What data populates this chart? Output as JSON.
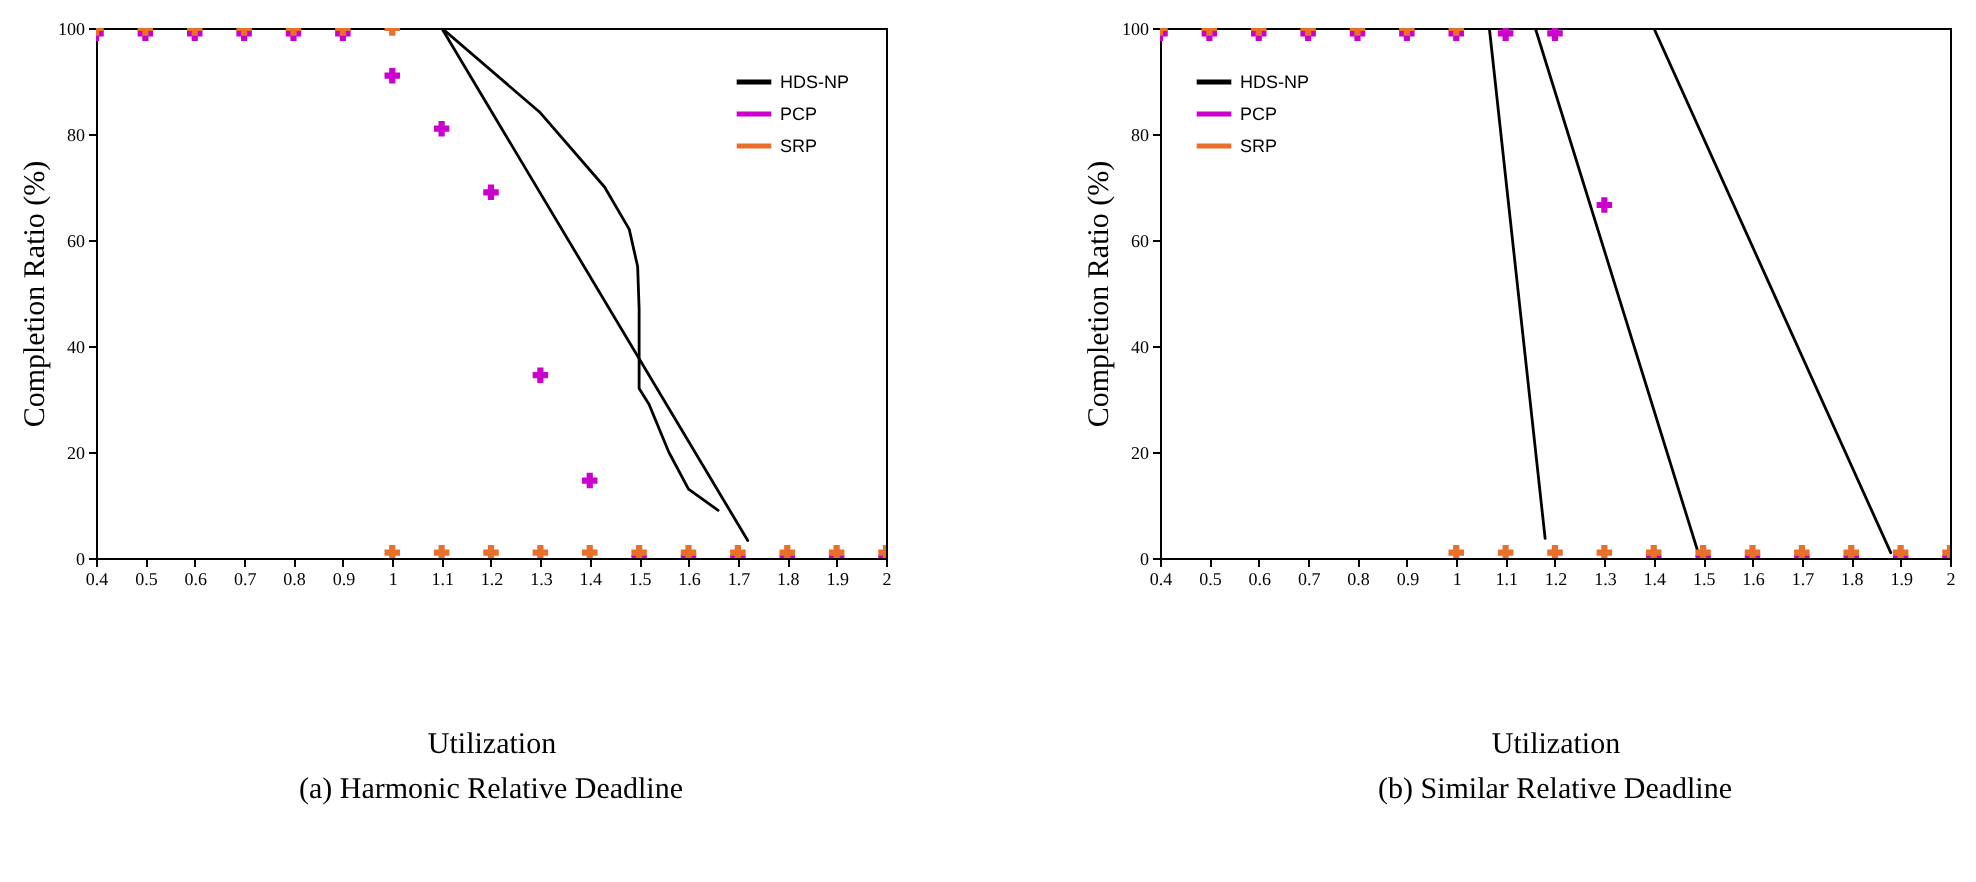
{
  "chart_data": [
    {
      "type": "line",
      "title": "(a)    Harmonic Relative Deadline",
      "xlabel": "Utilization",
      "ylabel": "Completion Ratio (%)",
      "xlim": [
        0.4,
        2
      ],
      "xticks": [
        0.4,
        0.5,
        0.6,
        0.7,
        0.8,
        0.9,
        1,
        1.1,
        1.2,
        1.3,
        1.4,
        1.5,
        1.6,
        1.7,
        1.8,
        1.9,
        2
      ],
      "ylim": [
        0,
        100
      ],
      "yticks": [
        0,
        20,
        40,
        60,
        80,
        100
      ],
      "legend": "top right",
      "grid": false,
      "series": [
        {
          "name": "HDS-NP",
          "type": "line",
          "color": "#000000",
          "x": [
            1.1,
            1.72
          ],
          "values": [
            100,
            3.3
          ]
        },
        {
          "type": "line",
          "color": "#000000",
          "x": [
            1.1,
            1.3,
            1.43,
            1.48,
            1.497,
            1.5,
            1.5,
            1.52,
            1.56,
            1.6,
            1.66
          ],
          "values": [
            100,
            84,
            70,
            62,
            55,
            47,
            32,
            29,
            20,
            13,
            9
          ]
        },
        {
          "name": "PCP",
          "type": "scatter",
          "marker": "cross",
          "color": "#cc00cc",
          "x": [
            0.4,
            0.5,
            0.6,
            0.7,
            0.8,
            0.9,
            1,
            1.1,
            1.2,
            1.3,
            1.4,
            1.5,
            1.6,
            1.7,
            1.8,
            1.9,
            2
          ],
          "values": [
            99,
            99,
            99,
            99,
            99,
            99,
            91,
            81,
            69,
            34.5,
            14.6,
            0,
            0,
            0,
            0,
            0,
            0
          ]
        },
        {
          "name": "SRP",
          "type": "scatter",
          "marker": "cross",
          "color": "#e8702a",
          "x": [
            0.4,
            0.5,
            0.6,
            0.7,
            0.8,
            0.9,
            1,
            1,
            1.1,
            1.2,
            1.3,
            1.4,
            1.5,
            1.6,
            1.7,
            1.8,
            1.9,
            2
          ],
          "values": [
            100,
            100,
            100,
            100,
            100,
            100,
            100,
            1,
            1,
            1,
            1,
            1,
            1,
            1,
            1,
            1,
            1,
            1
          ]
        }
      ]
    },
    {
      "type": "line",
      "title": "(b) Similar  Relative Deadline",
      "xlabel": "Utilization",
      "ylabel": "Completion Ratio (%)",
      "xlim": [
        0.4,
        2
      ],
      "xticks": [
        0.4,
        0.5,
        0.6,
        0.7,
        0.8,
        0.9,
        1,
        1.1,
        1.2,
        1.3,
        1.4,
        1.5,
        1.6,
        1.7,
        1.8,
        1.9,
        2
      ],
      "ylim": [
        0,
        100
      ],
      "yticks": [
        0,
        20,
        40,
        60,
        80,
        100
      ],
      "legend": "top left",
      "grid": false,
      "series": [
        {
          "name": "HDS-NP",
          "type": "line",
          "color": "#000000",
          "x": [
            1.067,
            1.18
          ],
          "values": [
            100,
            3.7
          ]
        },
        {
          "type": "line",
          "color": "#000000",
          "x": [
            1.16,
            1.49
          ],
          "values": [
            100,
            1
          ]
        },
        {
          "type": "line",
          "color": "#000000",
          "x": [
            1.4,
            1.88
          ],
          "values": [
            100,
            1
          ]
        },
        {
          "name": "PCP",
          "type": "scatter",
          "marker": "cross",
          "color": "#cc00cc",
          "x": [
            0.4,
            0.5,
            0.6,
            0.7,
            0.8,
            0.9,
            1,
            1.1,
            1.2,
            1.3,
            1.4,
            1.5,
            1.6,
            1.7,
            1.8,
            1.9,
            2
          ],
          "values": [
            99,
            99,
            99,
            99,
            99,
            99,
            99,
            99,
            99,
            66.6,
            0,
            0,
            0,
            0,
            0,
            0,
            0
          ]
        },
        {
          "name": "SRP",
          "type": "scatter",
          "marker": "cross",
          "color": "#e8702a",
          "x": [
            0.4,
            0.5,
            0.6,
            0.7,
            0.8,
            0.9,
            1,
            1,
            1.1,
            1.2,
            1.3,
            1.4,
            1.5,
            1.6,
            1.7,
            1.8,
            1.9,
            2
          ],
          "values": [
            100,
            100,
            100,
            100,
            100,
            100,
            100,
            1,
            1,
            1,
            1,
            1,
            1,
            1,
            1,
            1,
            1,
            1
          ]
        }
      ]
    }
  ]
}
